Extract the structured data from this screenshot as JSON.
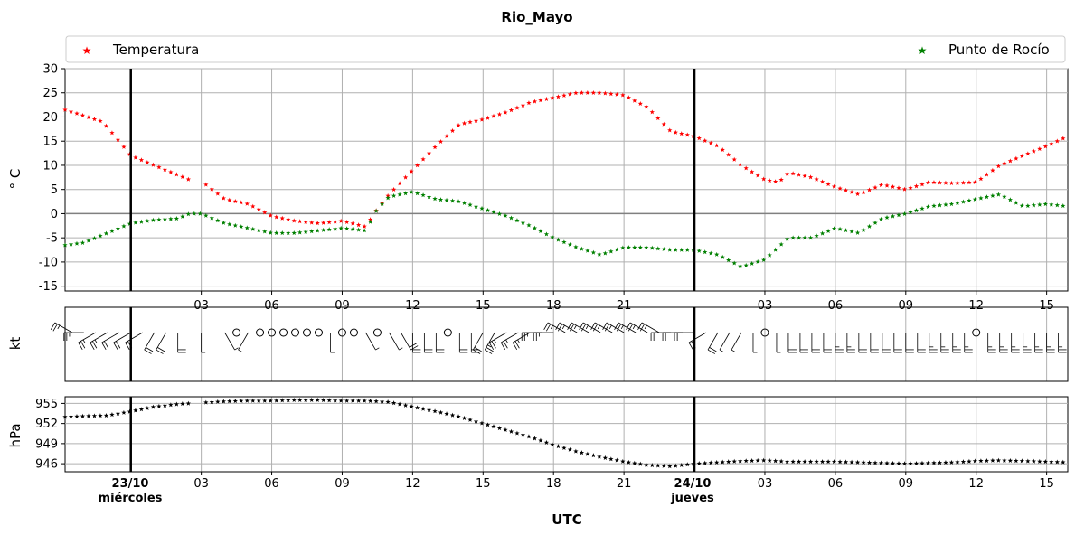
{
  "chart_data": {
    "type": "scatter",
    "title": "Rio_Mayo",
    "xlabel": "UTC",
    "x_unit": "hours from 2024-10-23 00:00 UTC",
    "x_range": [
      -2.8,
      39.9
    ],
    "x_tick_labels": [
      "03",
      "06",
      "09",
      "12",
      "15",
      "18",
      "21",
      "03",
      "06",
      "09",
      "12",
      "15"
    ],
    "date_markers": [
      {
        "date": "23/10",
        "weekday": "miércoles"
      },
      {
        "date": "24/10",
        "weekday": "jueves"
      }
    ],
    "legend": {
      "placement": "top, spanning",
      "entries": [
        "Temperatura",
        "Punto de Rocío"
      ]
    },
    "grid": true,
    "panels": [
      {
        "name": "temperature",
        "ylabel": "° C",
        "ylim": [
          -16,
          30
        ],
        "yticks": [
          -15,
          -10,
          -5,
          0,
          5,
          10,
          15,
          20,
          25,
          30
        ],
        "series": [
          {
            "name": "Temperatura",
            "color": "#ff0000",
            "marker": "star",
            "points": [
              [
                -2.8,
                21.5
              ],
              [
                -1.2,
                19
              ],
              [
                -0.5,
                15
              ],
              [
                0,
                12
              ],
              [
                1,
                10
              ],
              [
                2,
                8
              ],
              [
                2.5,
                7
              ],
              [
                3.2,
                6
              ],
              [
                4,
                3
              ],
              [
                5,
                2
              ],
              [
                6,
                -0.5
              ],
              [
                7,
                -1.5
              ],
              [
                8,
                -2
              ],
              [
                9,
                -1.5
              ],
              [
                10,
                -2.7
              ],
              [
                10.5,
                1
              ],
              [
                11,
                4
              ],
              [
                12,
                9
              ],
              [
                13,
                14
              ],
              [
                14,
                18.5
              ],
              [
                15,
                19.5
              ],
              [
                16,
                21
              ],
              [
                17,
                23
              ],
              [
                18,
                24
              ],
              [
                19,
                25
              ],
              [
                20,
                25
              ],
              [
                21,
                24.5
              ],
              [
                22,
                22
              ],
              [
                23,
                17
              ],
              [
                24,
                16
              ],
              [
                25,
                14
              ],
              [
                26,
                10
              ],
              [
                27,
                7
              ],
              [
                27.6,
                6.5
              ],
              [
                28,
                8.5
              ],
              [
                29,
                7.5
              ],
              [
                30,
                5.5
              ],
              [
                31,
                4
              ],
              [
                32,
                6
              ],
              [
                33,
                5
              ],
              [
                34,
                6.5
              ],
              [
                35,
                6.3
              ],
              [
                36,
                6.5
              ],
              [
                37,
                10
              ],
              [
                38,
                12
              ],
              [
                39,
                14
              ],
              [
                39.9,
                16
              ]
            ]
          },
          {
            "name": "Punto de Rocío",
            "color": "#008000",
            "marker": "star",
            "points": [
              [
                -2.8,
                -6.5
              ],
              [
                -2,
                -6
              ],
              [
                -1,
                -4
              ],
              [
                0,
                -2
              ],
              [
                1,
                -1.3
              ],
              [
                2,
                -1
              ],
              [
                2.5,
                0
              ],
              [
                3,
                0
              ],
              [
                4,
                -2
              ],
              [
                5,
                -3
              ],
              [
                6,
                -4
              ],
              [
                7,
                -4
              ],
              [
                8,
                -3.5
              ],
              [
                9,
                -3
              ],
              [
                10,
                -3.5
              ],
              [
                10.5,
                1
              ],
              [
                11,
                3.5
              ],
              [
                12,
                4.5
              ],
              [
                13,
                3
              ],
              [
                14,
                2.5
              ],
              [
                15,
                1
              ],
              [
                16,
                -0.5
              ],
              [
                17,
                -2.5
              ],
              [
                18,
                -5
              ],
              [
                19,
                -7
              ],
              [
                20,
                -8.5
              ],
              [
                21,
                -7
              ],
              [
                22,
                -7
              ],
              [
                23,
                -7.5
              ],
              [
                24,
                -7.5
              ],
              [
                25,
                -8.5
              ],
              [
                26,
                -11
              ],
              [
                27,
                -9.5
              ],
              [
                28,
                -5
              ],
              [
                29,
                -5
              ],
              [
                30,
                -3
              ],
              [
                31,
                -4
              ],
              [
                32,
                -1
              ],
              [
                33,
                0
              ],
              [
                34,
                1.5
              ],
              [
                35,
                2
              ],
              [
                36,
                3
              ],
              [
                37,
                4
              ],
              [
                38,
                1.5
              ],
              [
                39,
                2
              ],
              [
                39.9,
                1.5
              ]
            ]
          }
        ]
      },
      {
        "name": "wind",
        "ylabel": "kt",
        "series": [
          {
            "name": "wind barbs",
            "color": "#000000",
            "points": [
              [
                -2.5,
                10,
                15
              ],
              [
                -2,
                9,
                15
              ],
              [
                -1.5,
                8,
                15
              ],
              [
                -1,
                8,
                15
              ],
              [
                -0.5,
                8,
                10
              ],
              [
                0,
                8,
                10
              ],
              [
                0.5,
                8,
                10
              ],
              [
                1,
                7,
                10
              ],
              [
                1.5,
                7,
                10
              ],
              [
                2,
                6,
                10
              ],
              [
                3,
                6,
                5
              ],
              [
                4,
                5,
                5
              ],
              [
                4.5,
                0,
                0
              ],
              [
                5,
                7,
                5
              ],
              [
                5.5,
                0,
                0
              ],
              [
                6,
                0,
                0
              ],
              [
                6.5,
                0,
                0
              ],
              [
                7,
                0,
                0
              ],
              [
                7.5,
                0,
                0
              ],
              [
                8,
                0,
                0
              ],
              [
                8.5,
                6,
                5
              ],
              [
                9,
                0,
                0
              ],
              [
                9.5,
                0,
                0
              ],
              [
                10,
                5,
                5
              ],
              [
                10.5,
                0,
                0
              ],
              [
                11,
                5,
                5
              ],
              [
                11.5,
                5,
                10
              ],
              [
                12,
                6,
                10
              ],
              [
                12.5,
                6,
                10
              ],
              [
                13,
                6,
                10
              ],
              [
                13.5,
                0,
                0
              ],
              [
                14,
                6,
                10
              ],
              [
                14.5,
                6,
                10
              ],
              [
                15,
                7,
                10
              ],
              [
                15.5,
                7,
                15
              ],
              [
                16,
                8,
                15
              ],
              [
                16.5,
                8,
                15
              ],
              [
                17,
                8,
                15
              ],
              [
                17.5,
                9,
                15
              ],
              [
                18,
                9,
                15
              ],
              [
                18.5,
                10,
                15
              ],
              [
                19,
                10,
                15
              ],
              [
                19.5,
                10,
                15
              ],
              [
                20,
                10,
                15
              ],
              [
                20.5,
                10,
                15
              ],
              [
                21,
                10,
                15
              ],
              [
                21.5,
                10,
                15
              ],
              [
                22,
                10,
                15
              ],
              [
                22.5,
                10,
                15
              ],
              [
                23,
                9,
                10
              ],
              [
                23.5,
                9,
                10
              ],
              [
                24,
                9,
                10
              ],
              [
                24.5,
                8,
                10
              ],
              [
                25,
                7,
                10
              ],
              [
                25.5,
                7,
                5
              ],
              [
                26,
                7,
                5
              ],
              [
                26.5,
                6,
                5
              ],
              [
                27,
                0,
                0
              ],
              [
                27.5,
                6,
                5
              ],
              [
                28,
                6,
                10
              ],
              [
                28.5,
                6,
                10
              ],
              [
                29,
                6,
                10
              ],
              [
                29.5,
                6,
                10
              ],
              [
                30,
                6,
                15
              ],
              [
                30.5,
                6,
                15
              ],
              [
                31,
                6,
                10
              ],
              [
                31.5,
                6,
                10
              ],
              [
                32,
                6,
                10
              ],
              [
                32.5,
                6,
                10
              ],
              [
                33,
                6,
                10
              ],
              [
                33.5,
                6,
                10
              ],
              [
                34,
                6,
                15
              ],
              [
                34.5,
                6,
                15
              ],
              [
                35,
                6,
                15
              ],
              [
                35.5,
                6,
                15
              ],
              [
                36,
                0,
                0
              ],
              [
                36.5,
                6,
                15
              ],
              [
                37,
                6,
                15
              ],
              [
                37.5,
                6,
                15
              ],
              [
                38,
                6,
                15
              ],
              [
                38.5,
                6,
                15
              ],
              [
                39,
                6,
                15
              ],
              [
                39.5,
                6,
                15
              ]
            ]
          }
        ]
      },
      {
        "name": "pressure",
        "ylabel": "hPa",
        "ylim": [
          944.8,
          956
        ],
        "yticks": [
          946,
          949,
          952,
          955
        ],
        "series": [
          {
            "name": "Presión",
            "color": "#000000",
            "marker": "star",
            "points": [
              [
                -2.8,
                953
              ],
              [
                -2,
                953.1
              ],
              [
                -1,
                953.2
              ],
              [
                0,
                953.8
              ],
              [
                1,
                954.5
              ],
              [
                2,
                954.9
              ],
              [
                2.5,
                955
              ],
              [
                3,
                955.1
              ],
              [
                4,
                955.3
              ],
              [
                5,
                955.4
              ],
              [
                6,
                955.4
              ],
              [
                7,
                955.5
              ],
              [
                8,
                955.5
              ],
              [
                9,
                955.4
              ],
              [
                10,
                955.4
              ],
              [
                11,
                955.2
              ],
              [
                12,
                954.5
              ],
              [
                13,
                953.8
              ],
              [
                14,
                953
              ],
              [
                15,
                952
              ],
              [
                16,
                951
              ],
              [
                17,
                950
              ],
              [
                18,
                948.8
              ],
              [
                19,
                947.8
              ],
              [
                20,
                947
              ],
              [
                21,
                946.3
              ],
              [
                22,
                945.8
              ],
              [
                23,
                945.6
              ],
              [
                24,
                946
              ],
              [
                25,
                946.2
              ],
              [
                26,
                946.4
              ],
              [
                27,
                946.5
              ],
              [
                28,
                946.3
              ],
              [
                29,
                946.3
              ],
              [
                30,
                946.3
              ],
              [
                31,
                946.2
              ],
              [
                32,
                946.1
              ],
              [
                33,
                946
              ],
              [
                34,
                946.1
              ],
              [
                35,
                946.2
              ],
              [
                36,
                946.4
              ],
              [
                37,
                946.5
              ],
              [
                38,
                946.4
              ],
              [
                39,
                946.3
              ],
              [
                39.9,
                946.2
              ]
            ]
          }
        ]
      }
    ]
  }
}
